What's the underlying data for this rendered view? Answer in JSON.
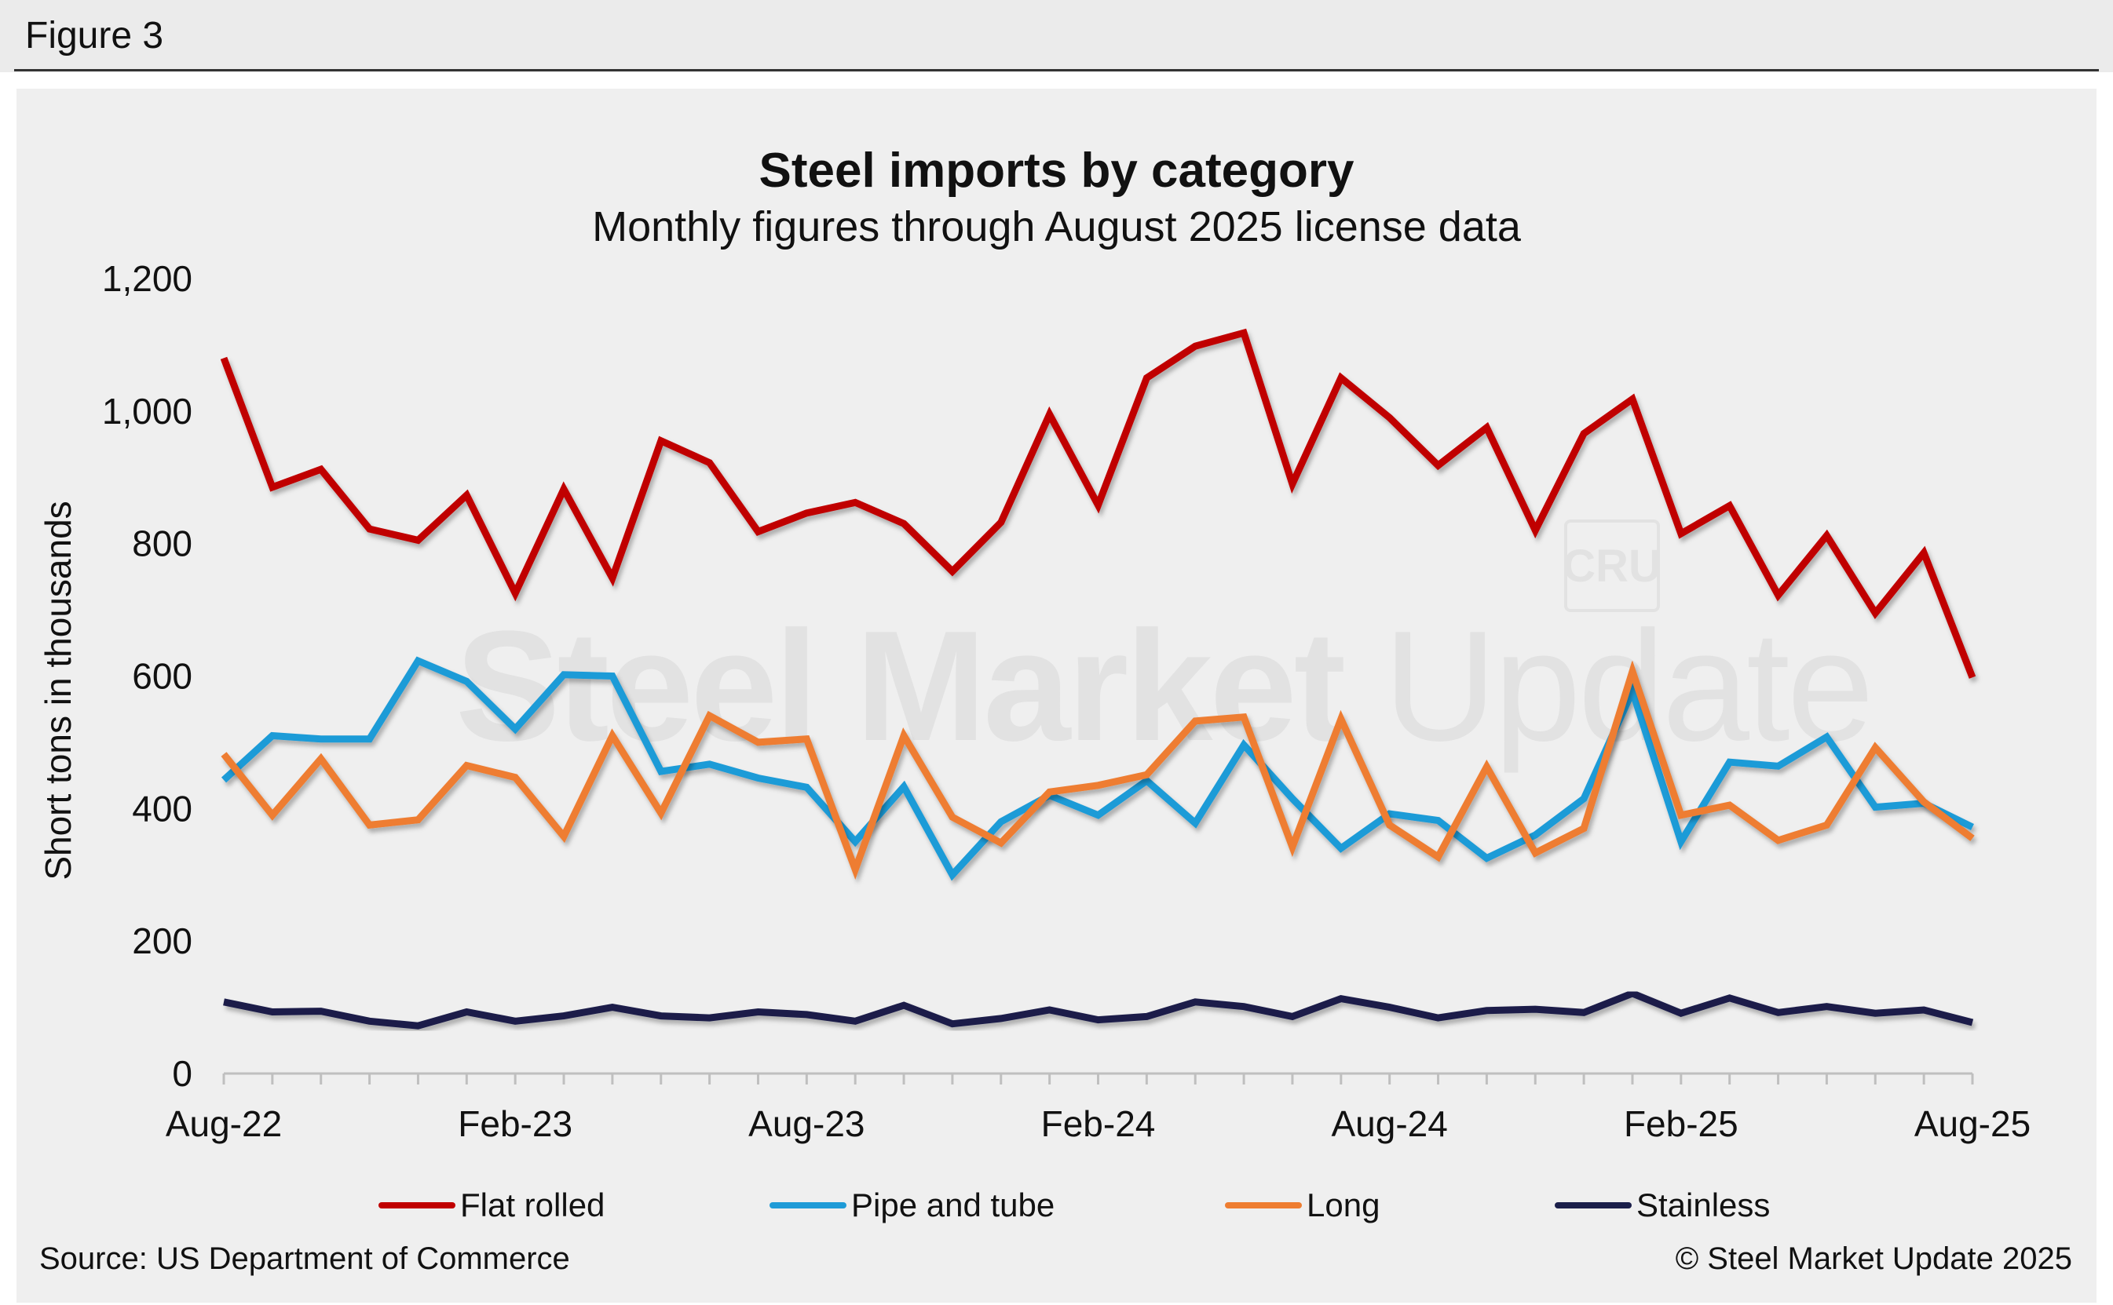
{
  "figure_label": "Figure 3",
  "watermark": {
    "strong": "Steel Market",
    "light": "Update",
    "logo": "CRU"
  },
  "source": "Source: US Department of Commerce",
  "copyright": "© Steel Market Update 2025",
  "chart_data": {
    "type": "line",
    "title": "Steel imports by category",
    "subtitle": "Monthly figures through August 2025 license data",
    "xlabel": "",
    "ylabel": "Short tons in thousands",
    "ylim": [
      0,
      1200
    ],
    "yticks": [
      0,
      200,
      400,
      600,
      800,
      1000,
      1200
    ],
    "ytick_labels": [
      "0",
      "200",
      "400",
      "600",
      "800",
      "1,000",
      "1,200"
    ],
    "grid": false,
    "legend_position": "bottom",
    "x": [
      "Aug-22",
      "Sep-22",
      "Oct-22",
      "Nov-22",
      "Dec-22",
      "Jan-23",
      "Feb-23",
      "Mar-23",
      "Apr-23",
      "May-23",
      "Jun-23",
      "Jul-23",
      "Aug-23",
      "Sep-23",
      "Oct-23",
      "Nov-23",
      "Dec-23",
      "Jan-24",
      "Feb-24",
      "Mar-24",
      "Apr-24",
      "May-24",
      "Jun-24",
      "Jul-24",
      "Aug-24",
      "Sep-24",
      "Oct-24",
      "Nov-24",
      "Dec-24",
      "Jan-25",
      "Feb-25",
      "Mar-25",
      "Apr-25",
      "May-25",
      "Jun-25",
      "Jul-25",
      "Aug-25"
    ],
    "xtick_labels": [
      {
        "index": 0,
        "label": "Aug-22"
      },
      {
        "index": 6,
        "label": "Feb-23"
      },
      {
        "index": 12,
        "label": "Aug-23"
      },
      {
        "index": 18,
        "label": "Feb-24"
      },
      {
        "index": 24,
        "label": "Aug-24"
      },
      {
        "index": 30,
        "label": "Feb-25"
      },
      {
        "index": 36,
        "label": "Aug-25"
      }
    ],
    "series": [
      {
        "name": "Flat rolled",
        "color": "#c00000",
        "values": [
          1080,
          885,
          912,
          822,
          805,
          873,
          725,
          882,
          748,
          955,
          922,
          818,
          846,
          862,
          830,
          758,
          832,
          995,
          858,
          1050,
          1098,
          1118,
          890,
          1050,
          990,
          918,
          975,
          820,
          966,
          1018,
          815,
          857,
          722,
          812,
          695,
          786,
          598
        ]
      },
      {
        "name": "Pipe and tube",
        "color": "#1f9bd7",
        "values": [
          443,
          510,
          505,
          505,
          623,
          592,
          520,
          602,
          600,
          456,
          467,
          446,
          432,
          350,
          433,
          300,
          380,
          420,
          390,
          442,
          378,
          496,
          415,
          340,
          392,
          382,
          325,
          360,
          415,
          577,
          350,
          470,
          464,
          508,
          402,
          408,
          372
        ]
      },
      {
        "name": "Long",
        "color": "#ee7d31",
        "values": [
          482,
          390,
          475,
          375,
          383,
          465,
          447,
          358,
          510,
          393,
          540,
          500,
          505,
          308,
          510,
          387,
          348,
          425,
          435,
          451,
          532,
          538,
          342,
          535,
          375,
          327,
          463,
          333,
          370,
          607,
          390,
          405,
          352,
          375,
          492,
          410,
          355
        ]
      },
      {
        "name": "Stainless",
        "color": "#1b1f4a",
        "values": [
          108,
          93,
          94,
          79,
          72,
          93,
          79,
          87,
          100,
          87,
          84,
          93,
          89,
          79,
          103,
          75,
          83,
          96,
          81,
          86,
          108,
          101,
          86,
          113,
          100,
          84,
          95,
          97,
          92,
          121,
          91,
          114,
          92,
          101,
          91,
          96,
          77
        ]
      }
    ]
  }
}
